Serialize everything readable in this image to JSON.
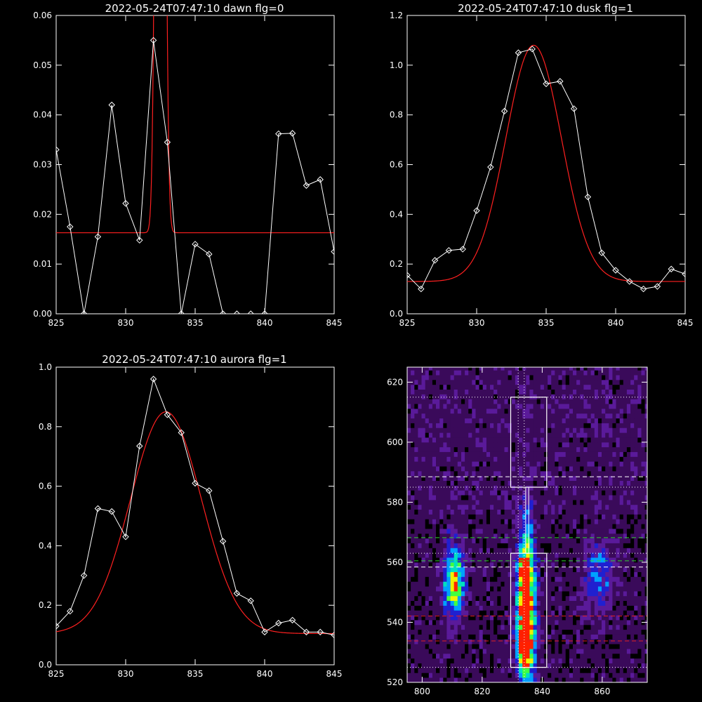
{
  "colors": {
    "background": "#000000",
    "axis": "#ffffff",
    "data": "#ffffff",
    "fit": "#ff2020",
    "green_guide": "#30d030",
    "red_guide": "#e02020"
  },
  "chart_data": [
    {
      "id": "dawn",
      "type": "line",
      "title": "2022-05-24T07:47:10 dawn flg=0",
      "xlim": [
        825,
        845
      ],
      "ylim": [
        0,
        0.06
      ],
      "xticks": [
        "825",
        "830",
        "835",
        "840",
        "845"
      ],
      "yticks": [
        "0.00",
        "0.01",
        "0.02",
        "0.03",
        "0.04",
        "0.05",
        "0.06"
      ],
      "x": [
        825,
        826,
        827,
        828,
        829,
        830,
        831,
        832,
        833,
        834,
        835,
        836,
        837,
        838,
        839,
        840,
        841,
        842,
        843,
        844,
        845
      ],
      "series": [
        {
          "style": "data",
          "values": [
            0.033,
            0.0175,
            0,
            0.0155,
            0.042,
            0.0222,
            0.0148,
            0.055,
            0.0345,
            0,
            0.014,
            0.012,
            0,
            0,
            0,
            0,
            0.0362,
            0.0363,
            0.0258,
            0.027,
            0.0125
          ]
        }
      ],
      "fit": {
        "kind": "gaussian",
        "baseline": 0.0163,
        "amplitude": 0.3,
        "center": 832.5,
        "sigma": 0.25
      }
    },
    {
      "id": "dusk",
      "type": "line",
      "title": "2022-05-24T07:47:10 dusk flg=1",
      "xlim": [
        825,
        845
      ],
      "ylim": [
        0,
        1.2
      ],
      "xticks": [
        "825",
        "830",
        "835",
        "840",
        "845"
      ],
      "yticks": [
        "0.0",
        "0.2",
        "0.4",
        "0.6",
        "0.8",
        "1.0",
        "1.2"
      ],
      "x": [
        825,
        826,
        827,
        828,
        829,
        830,
        831,
        832,
        833,
        834,
        835,
        836,
        837,
        838,
        839,
        840,
        841,
        842,
        843,
        844,
        845
      ],
      "series": [
        {
          "style": "data",
          "values": [
            0.155,
            0.1,
            0.215,
            0.255,
            0.26,
            0.415,
            0.59,
            0.815,
            1.05,
            1.065,
            0.925,
            0.935,
            0.825,
            0.47,
            0.245,
            0.175,
            0.13,
            0.1,
            0.11,
            0.18,
            0.16
          ]
        }
      ],
      "fit": {
        "kind": "gaussian",
        "baseline": 0.13,
        "amplitude": 0.95,
        "center": 834.1,
        "sigma": 2.0
      }
    },
    {
      "id": "aurora",
      "type": "line",
      "title": "2022-05-24T07:47:10 aurora flg=1",
      "xlim": [
        825,
        845
      ],
      "ylim": [
        0,
        1.0
      ],
      "xticks": [
        "825",
        "830",
        "835",
        "840",
        "845"
      ],
      "yticks": [
        "0.0",
        "0.2",
        "0.4",
        "0.6",
        "0.8",
        "1.0"
      ],
      "x": [
        825,
        826,
        827,
        828,
        829,
        830,
        831,
        832,
        833,
        834,
        835,
        836,
        837,
        838,
        839,
        840,
        841,
        842,
        843,
        844,
        845
      ],
      "series": [
        {
          "style": "data",
          "values": [
            0.13,
            0.18,
            0.3,
            0.525,
            0.515,
            0.43,
            0.735,
            0.96,
            0.84,
            0.78,
            0.61,
            0.585,
            0.415,
            0.24,
            0.215,
            0.11,
            0.14,
            0.15,
            0.11,
            0.11,
            0.1
          ]
        }
      ],
      "fit": {
        "kind": "gaussian",
        "baseline": 0.105,
        "amplitude": 0.745,
        "center": 832.9,
        "sigma": 2.55
      }
    },
    {
      "id": "image",
      "type": "heatmap",
      "title": "",
      "xlim": [
        795,
        875
      ],
      "ylim": [
        520,
        625
      ],
      "xticks": [
        "800",
        "820",
        "840",
        "860"
      ],
      "yticks": [
        "520",
        "540",
        "560",
        "580",
        "600",
        "620"
      ],
      "colormap": [
        "#000000",
        "#3a0a5a",
        "#5a1a9a",
        "#2020d0",
        "#00a0ff",
        "#00e0c0",
        "#40ff40",
        "#f0f000",
        "#ff2000"
      ],
      "sources": [
        {
          "x": 834,
          "y": 545,
          "wx": 2.0,
          "wy": 18,
          "amp": 0.95
        },
        {
          "x": 810,
          "y": 553,
          "wx": 2.2,
          "wy": 8,
          "amp": 0.7
        },
        {
          "x": 834,
          "y": 556,
          "wx": 1.5,
          "wy": 4,
          "amp": 0.5
        },
        {
          "x": 858,
          "y": 555,
          "wx": 3.5,
          "wy": 8,
          "amp": 0.3
        },
        {
          "x": 834,
          "y": 532,
          "wx": 2.0,
          "wy": 6,
          "amp": 0.45
        }
      ],
      "boxes": [
        {
          "x0": 829.5,
          "x1": 841.5,
          "y0": 585,
          "y1": 615
        },
        {
          "x0": 829.5,
          "x1": 841.5,
          "y0": 525,
          "y1": 563
        }
      ],
      "connector": {
        "x0": 834.5,
        "x1": 835.5,
        "y0": 563,
        "y1": 585
      },
      "v_dotted": [
        832,
        834
      ],
      "h_dotted": [
        615,
        585,
        563,
        525
      ],
      "h_dashed": [
        {
          "y": 588.5,
          "color": "white"
        },
        {
          "y": 568.2,
          "color": "green"
        },
        {
          "y": 560.5,
          "color": "green"
        },
        {
          "y": 558.4,
          "color": "white"
        },
        {
          "y": 542.1,
          "color": "red"
        },
        {
          "y": 533.8,
          "color": "red"
        }
      ]
    }
  ]
}
